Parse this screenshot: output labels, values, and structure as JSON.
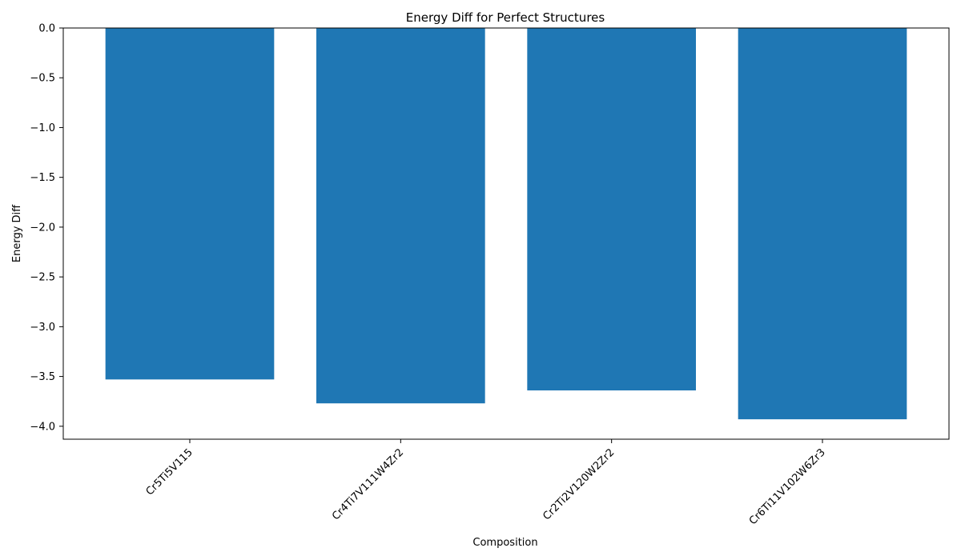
{
  "chart_data": {
    "type": "bar",
    "title": "Energy Diff for Perfect Structures",
    "xlabel": "Composition",
    "ylabel": "Energy Diff",
    "categories": [
      "Cr5Ti5V115",
      "Cr4Ti7V111W4Zr2",
      "Cr2Ti2V120W2Zr2",
      "Cr6Ti11V102W6Zr3"
    ],
    "values": [
      -3.53,
      -3.77,
      -3.64,
      -3.93
    ],
    "ylim": [
      -4.13,
      0.0
    ],
    "yticks": [
      0.0,
      -0.5,
      -1.0,
      -1.5,
      -2.0,
      -2.5,
      -3.0,
      -3.5,
      -4.0
    ],
    "ytick_labels": [
      "0.0",
      "−0.5",
      "−1.0",
      "−1.5",
      "−2.0",
      "−2.5",
      "−3.0",
      "−3.5",
      "−4.0"
    ],
    "grid": false,
    "bar_color": "#1f77b4"
  }
}
